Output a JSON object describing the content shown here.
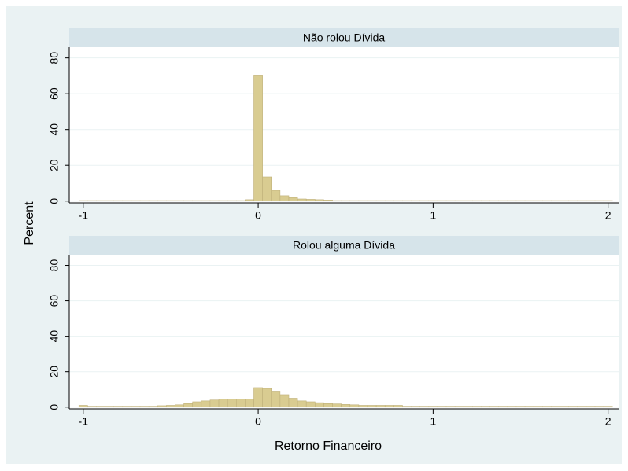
{
  "ylabel": "Percent",
  "chart_data": [
    {
      "type": "histogram",
      "title": "Não rolou Dívida",
      "color": "#d9cc91",
      "grid": true,
      "bins": [
        -1.025,
        -0.975,
        -0.925,
        -0.875,
        -0.825,
        -0.775,
        -0.725,
        -0.675,
        -0.625,
        -0.575,
        -0.525,
        -0.475,
        -0.425,
        -0.375,
        -0.325,
        -0.275,
        -0.225,
        -0.175,
        -0.125,
        -0.075,
        -0.025,
        0.025,
        0.075,
        0.125,
        0.175,
        0.225,
        0.275,
        0.325,
        0.375,
        0.425,
        0.475,
        0.525,
        0.575,
        0.625,
        0.675,
        0.725,
        0.775,
        0.825,
        0.875,
        0.925,
        0.975,
        1.025,
        1.075,
        1.125,
        1.175,
        1.225,
        1.275,
        1.325,
        1.375,
        1.425,
        1.475,
        1.525,
        1.575,
        1.625,
        1.675,
        1.725,
        1.775,
        1.825,
        1.875,
        1.925,
        1.975,
        2.025
      ],
      "counts": [
        0.3,
        0.3,
        0.3,
        0.3,
        0.3,
        0.3,
        0.3,
        0.3,
        0.3,
        0.3,
        0.3,
        0.3,
        0.3,
        0.3,
        0.3,
        0.3,
        0.3,
        0.3,
        0.3,
        0.8,
        70,
        13.5,
        6,
        3,
        2,
        1.2,
        1,
        0.8,
        0.6,
        0.3,
        0.3,
        0.3,
        0.3,
        0.3,
        0.3,
        0.3,
        0.3,
        0.3,
        0.3,
        0.3,
        0.3,
        0.3,
        0.3,
        0.3,
        0.3,
        0.3,
        0.3,
        0.3,
        0.3,
        0.3,
        0.3,
        0.3,
        0.3,
        0.3,
        0.3,
        0.3,
        0.3,
        0.3,
        0.3,
        0.3,
        0.3
      ],
      "xlim": [
        -1.08,
        2.06
      ],
      "xticks": [
        -1,
        0,
        1,
        2
      ],
      "ylim": [
        -1,
        86
      ],
      "yticks": [
        0,
        20,
        40,
        60,
        80
      ]
    },
    {
      "type": "histogram",
      "title": "Rolou alguma Dívida",
      "color": "#d9cc91",
      "grid": true,
      "xlabel": "Retorno Financeiro",
      "bins": [
        -1.025,
        -0.975,
        -0.925,
        -0.875,
        -0.825,
        -0.775,
        -0.725,
        -0.675,
        -0.625,
        -0.575,
        -0.525,
        -0.475,
        -0.425,
        -0.375,
        -0.325,
        -0.275,
        -0.225,
        -0.175,
        -0.125,
        -0.075,
        -0.025,
        0.025,
        0.075,
        0.125,
        0.175,
        0.225,
        0.275,
        0.325,
        0.375,
        0.425,
        0.475,
        0.525,
        0.575,
        0.625,
        0.675,
        0.725,
        0.775,
        0.825,
        0.875,
        0.925,
        0.975,
        1.025,
        1.075,
        1.125,
        1.175,
        1.225,
        1.275,
        1.325,
        1.375,
        1.425,
        1.475,
        1.525,
        1.575,
        1.625,
        1.675,
        1.725,
        1.775,
        1.825,
        1.875,
        1.925,
        1.975,
        2.025
      ],
      "counts": [
        1,
        0.5,
        0.5,
        0.5,
        0.5,
        0.5,
        0.5,
        0.5,
        0.5,
        0.8,
        1,
        1.3,
        2,
        3,
        3.5,
        4,
        4.5,
        4.5,
        4.5,
        4.5,
        11,
        10.5,
        9,
        7,
        5,
        3.5,
        3,
        2.5,
        2,
        1.8,
        1.5,
        1.3,
        1,
        1,
        1,
        1,
        1,
        0.5,
        0.5,
        0.5,
        0.5,
        0.5,
        0.5,
        0.5,
        0.5,
        0.5,
        0.5,
        0.5,
        0.5,
        0.5,
        0.5,
        0.5,
        0.5,
        0.5,
        0.5,
        0.5,
        0.5,
        0.5,
        0.5,
        0.5,
        0.5
      ],
      "xlim": [
        -1.08,
        2.06
      ],
      "xticks": [
        -1,
        0,
        1,
        2
      ],
      "ylim": [
        -1,
        86
      ],
      "yticks": [
        0,
        20,
        40,
        60,
        80
      ]
    }
  ]
}
